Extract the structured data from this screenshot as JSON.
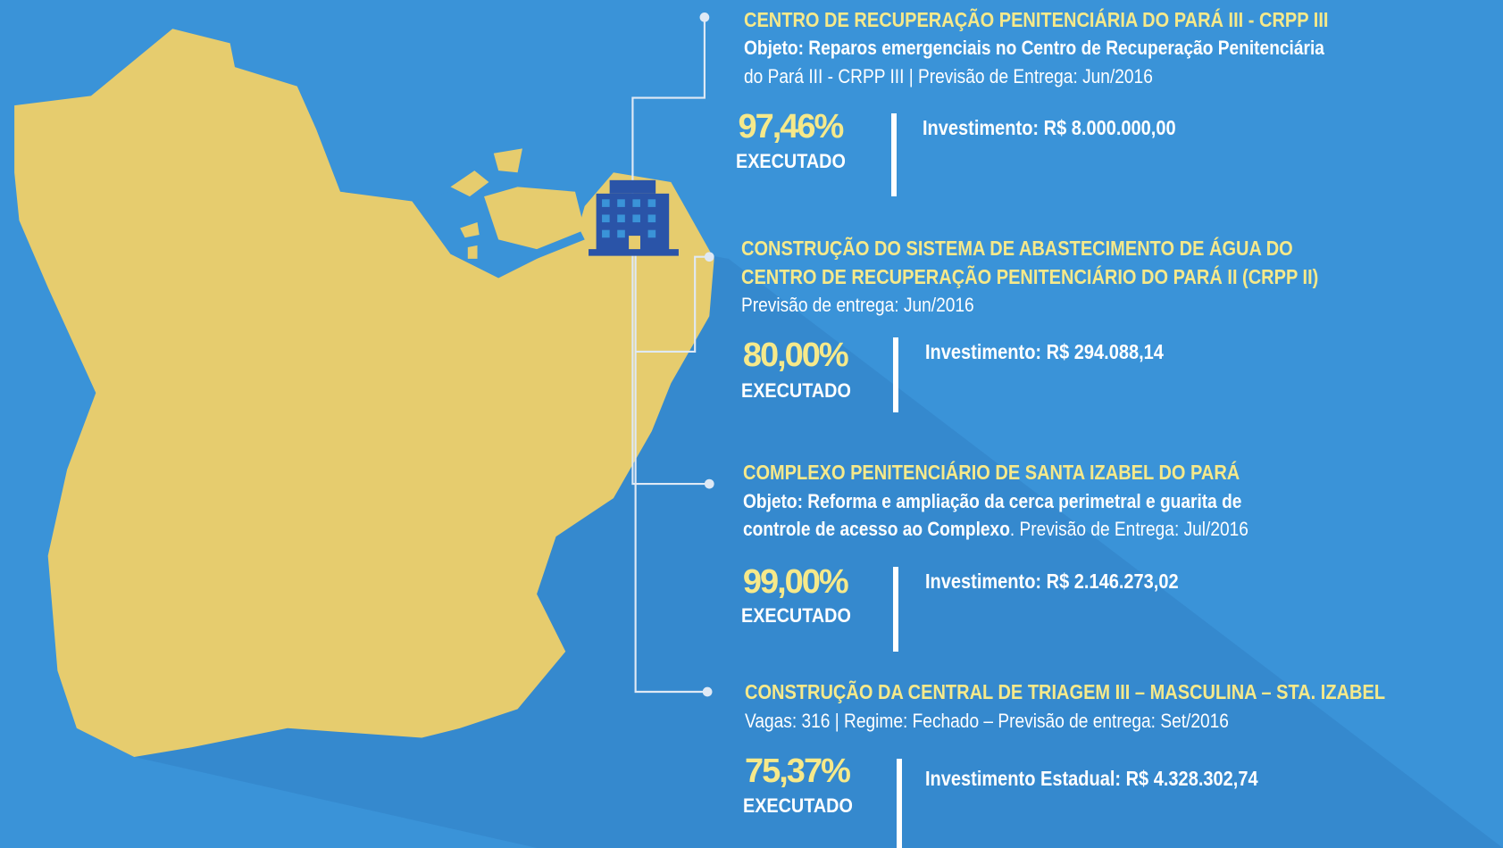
{
  "items": [
    {
      "title_lines": [
        "CENTRO DE RECUPERAÇÃO PENITENCIÁRIA DO PARÁ III - CRPP III"
      ],
      "description": [
        [
          {
            "text": "Objeto: Reparos emergenciais no Centro de Recuperação Penitenciária",
            "bold": true
          }
        ],
        [
          {
            "text": "do Pará III - CRPP III  |  Previsão de Entrega: Jun/2016",
            "bold": false
          }
        ]
      ],
      "percent": "97,46%",
      "status": "EXECUTADO",
      "investment": "Investimento: R$ 8.000.000,00"
    },
    {
      "title_lines": [
        "CONSTRUÇÃO DO SISTEMA  DE ABASTECIMENTO DE ÁGUA DO",
        "CENTRO DE RECUPERAÇÃO PENITENCIÁRIO DO PARÁ II (CRPP II)"
      ],
      "description": [
        [
          {
            "text": "Previsão de entrega: Jun/2016",
            "bold": false
          }
        ]
      ],
      "percent": "80,00%",
      "status": "EXECUTADO",
      "investment": "Investimento: R$ 294.088,14"
    },
    {
      "title_lines": [
        "COMPLEXO PENITENCIÁRIO DE SANTA IZABEL DO PARÁ"
      ],
      "description": [
        [
          {
            "text": "Objeto: Reforma e ampliação da cerca perimetral e guarita de",
            "bold": true
          }
        ],
        [
          {
            "text": "controle de acesso  ao Complexo",
            "bold": true
          },
          {
            "text": ". Previsão de Entrega: Jul/2016",
            "bold": false
          }
        ]
      ],
      "percent": "99,00%",
      "status": "EXECUTADO",
      "investment": "Investimento: R$ 2.146.273,02"
    },
    {
      "title_lines": [
        "CONSTRUÇÃO DA CENTRAL DE TRIAGEM III – MASCULINA – STA. IZABEL"
      ],
      "description": [
        [
          {
            "text": "Vagas: 316  |  Regime: Fechado – Previsão de entrega: Set/2016",
            "bold": false
          }
        ]
      ],
      "percent": "75,37%",
      "status": "EXECUTADO",
      "investment": "Investimento Estadual: R$ 4.328.302,74"
    }
  ]
}
